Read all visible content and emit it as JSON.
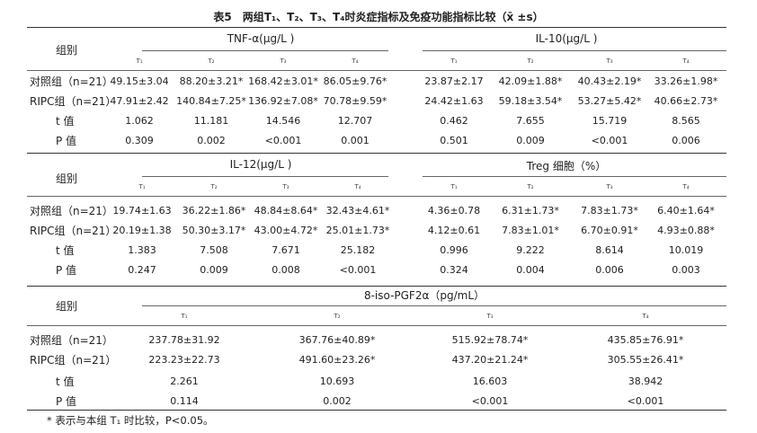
{
  "title": "表5　两组T₁、T₂、T₃、T₄时炎症指标及免疫功能指标比较（x̄ ±s）",
  "group_label": "组别",
  "time_points": [
    "T₁",
    "T₂",
    "T₃",
    "T₄"
  ],
  "row_labels": [
    "对照组（n=21）",
    "RIPC组（n=21）",
    "t 值",
    "P 值"
  ],
  "tables": [
    {
      "indicators": [
        {
          "name": "TNF-α(μg/L )",
          "rows": [
            [
              "49.15±3.04",
              "88.20±3.21*",
              "168.42±3.01*",
              "86.05±9.76*"
            ],
            [
              "47.91±2.42",
              "140.84±7.25*",
              "136.92±7.08*",
              "70.78±9.59*"
            ],
            [
              "1.062",
              "11.181",
              "14.546",
              "12.707"
            ],
            [
              "0.309",
              "0.002",
              "<0.001",
              "0.001"
            ]
          ]
        },
        {
          "name": "IL-10(μg/L )",
          "rows": [
            [
              "23.87±2.17",
              "42.09±1.88*",
              "40.43±2.19*",
              "33.26±1.98*"
            ],
            [
              "24.42±1.63",
              "59.18±3.54*",
              "53.27±5.42*",
              "40.66±2.73*"
            ],
            [
              "0.462",
              "7.655",
              "15.719",
              "8.565"
            ],
            [
              "0.501",
              "0.009",
              "<0.001",
              "0.006"
            ]
          ]
        }
      ]
    },
    {
      "indicators": [
        {
          "name": "IL-12(μg/L )",
          "rows": [
            [
              "19.74±1.63",
              "36.22±1.86*",
              "48.84±8.64*",
              "32.43±4.61*"
            ],
            [
              "20.19±1.38",
              "50.30±3.17*",
              "43.00±4.72*",
              "25.01±1.73*"
            ],
            [
              "1.383",
              "7.508",
              "7.671",
              "25.182"
            ],
            [
              "0.247",
              "0.009",
              "0.008",
              "<0.001"
            ]
          ]
        },
        {
          "name": "Treg 细胞（%）",
          "rows": [
            [
              "4.36±0.78",
              "6.31±1.73*",
              "7.83±1.73*",
              "6.40±1.64*"
            ],
            [
              "4.12±0.61",
              "7.83±1.01*",
              "6.70±0.91*",
              "4.93±0.88*"
            ],
            [
              "0.996",
              "9.222",
              "8.614",
              "10.019"
            ],
            [
              "0.324",
              "0.004",
              "0.006",
              "0.003"
            ]
          ]
        }
      ]
    },
    {
      "indicators": [
        {
          "name": "8-iso-PGF2α（pg/mL）",
          "rows": [
            [
              "237.78±31.92",
              "367.76±40.89*",
              "515.92±78.74*",
              "435.85±76.91*"
            ],
            [
              "223.23±22.73",
              "491.60±23.26*",
              "437.20±21.24*",
              "305.55±26.41*"
            ],
            [
              "2.261",
              "10.693",
              "16.603",
              "38.942"
            ],
            [
              "0.114",
              "0.002",
              "<0.001",
              "<0.001"
            ]
          ]
        }
      ]
    }
  ],
  "footnote": "* 表示与本组 T₁ 时比较，P<0.05。"
}
